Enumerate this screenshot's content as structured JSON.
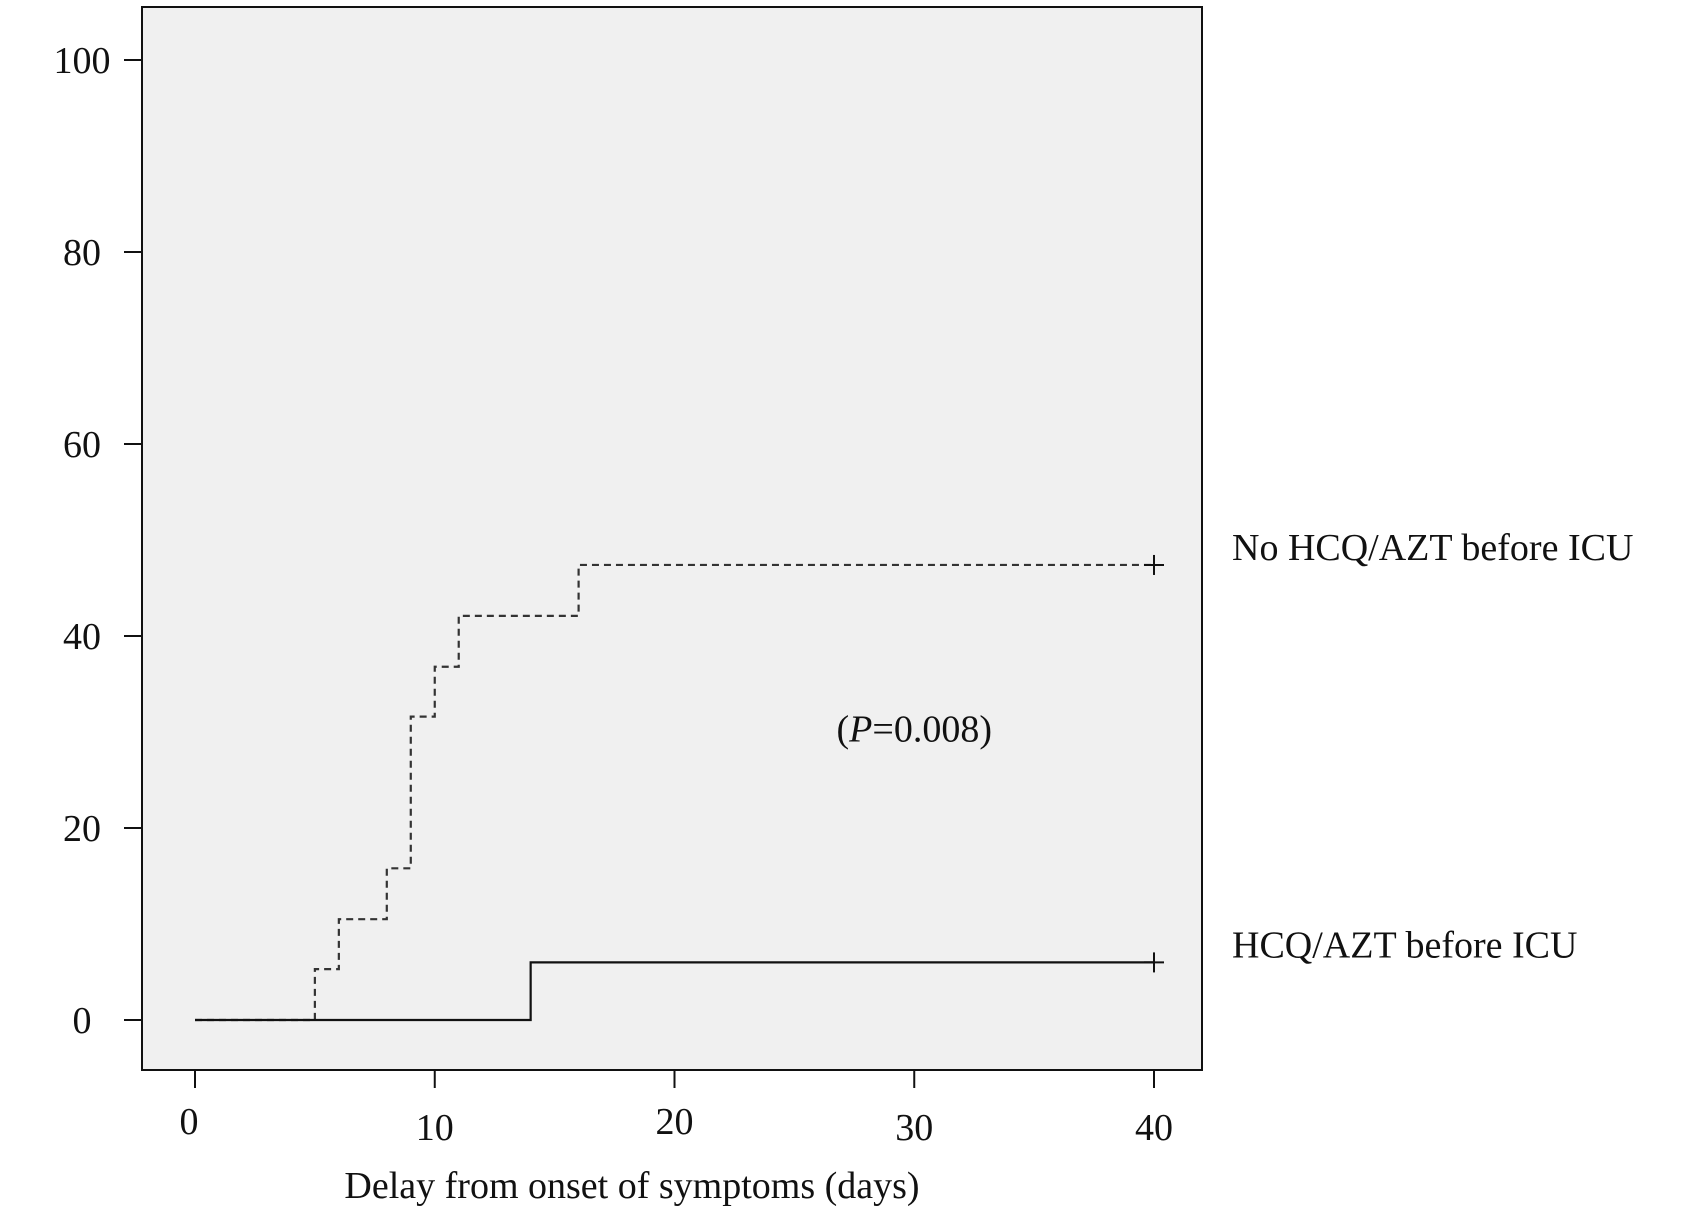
{
  "chart_data": {
    "type": "line",
    "step": true,
    "title": "",
    "xlabel": "Delay from onset of symptoms (days)",
    "ylabel": "",
    "xlim": [
      0,
      40
    ],
    "ylim": [
      0,
      100
    ],
    "x_ticks": [
      0,
      10,
      20,
      30,
      40
    ],
    "y_ticks": [
      0,
      20,
      40,
      60,
      80,
      100
    ],
    "x_tick_labels": [
      "0",
      "10",
      "20",
      "30",
      "40"
    ],
    "y_tick_labels": [
      "0",
      "20",
      "40",
      "60",
      "80",
      "100"
    ],
    "grid": false,
    "plot_background": "#f0f0f0",
    "series": [
      {
        "name": "No HCQ/AZT before ICU",
        "line_style": "dashed",
        "color": "#333333",
        "x": [
          0,
          5,
          6,
          8,
          9,
          10,
          11,
          16,
          40
        ],
        "y": [
          0,
          5.3,
          10.5,
          15.8,
          31.6,
          36.8,
          42.1,
          47.4,
          47.4
        ],
        "censored_x": [
          40
        ]
      },
      {
        "name": "HCQ/AZT before ICU",
        "line_style": "solid",
        "color": "#111111",
        "x": [
          0,
          14,
          40
        ],
        "y": [
          0,
          6.0,
          6.0
        ],
        "censored_x": [
          40
        ]
      }
    ],
    "annotations": {
      "p_open": "(",
      "p_italic": "P",
      "p_rest": "=0.008)",
      "p_position_x": 30,
      "p_position_y": 29
    }
  }
}
